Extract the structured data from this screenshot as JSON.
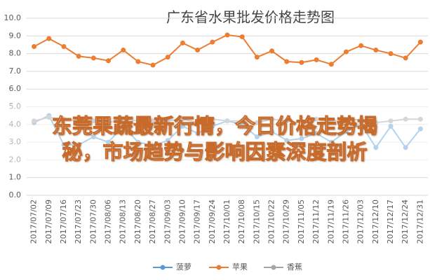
{
  "chart_data": {
    "type": "line",
    "title": "广东省水果批发价格走势图",
    "categories": [
      "2017/07/02",
      "2017/07/09",
      "2017/07/16",
      "2017/07/23",
      "2017/07/30",
      "2017/08/06",
      "2017/08/13",
      "2017/08/20",
      "2017/08/27",
      "2017/09/03",
      "2017/09/10",
      "2017/09/17",
      "2017/09/24",
      "2017/10/01",
      "2017/10/08",
      "2017/10/15",
      "2017/10/22",
      "2017/10/29",
      "2017/11/05",
      "2017/11/12",
      "2017/11/19",
      "2017/11/26",
      "2017/12/03",
      "2017/12/10",
      "2017/12/17",
      "2017/12/24",
      "2017/12/31"
    ],
    "series": [
      {
        "name": "菠萝",
        "color": "#5b9bd5",
        "values": [
          4.1,
          4.5,
          2.85,
          2.85,
          3.3,
          3.0,
          3.9,
          3.0,
          2.8,
          3.1,
          3.9,
          3.5,
          3.9,
          4.2,
          4.0,
          3.3,
          3.6,
          3.1,
          3.2,
          3.5,
          3.0,
          3.6,
          4.0,
          2.7,
          3.9,
          2.7,
          3.75
        ]
      },
      {
        "name": "苹果",
        "color": "#ed7d31",
        "values": [
          8.4,
          8.85,
          8.4,
          7.85,
          7.75,
          7.6,
          8.2,
          7.55,
          7.35,
          7.8,
          8.6,
          8.2,
          8.65,
          9.05,
          8.95,
          7.8,
          8.15,
          7.55,
          7.5,
          7.65,
          7.4,
          8.1,
          8.45,
          8.2,
          8.0,
          7.75,
          8.65
        ]
      },
      {
        "name": "香蕉",
        "color": "#a5a5a5",
        "values": [
          4.2,
          4.4,
          4.3,
          4.2,
          4.2,
          4.1,
          4.3,
          4.2,
          4.2,
          4.2,
          4.3,
          4.1,
          4.3,
          4.2,
          4.2,
          4.1,
          4.3,
          4.2,
          4.1,
          4.3,
          4.2,
          4.2,
          4.3,
          4.1,
          4.2,
          4.3,
          4.3
        ]
      }
    ],
    "ylim": [
      0,
      10
    ],
    "yticks": [
      {
        "value": 0,
        "label": "0.0"
      },
      {
        "value": 1,
        "label": "1.0"
      },
      {
        "value": 2,
        "label": "2.0"
      },
      {
        "value": 3,
        "label": "3.0"
      },
      {
        "value": 4,
        "label": "4.0"
      },
      {
        "value": 5,
        "label": "5.0"
      },
      {
        "value": 6,
        "label": "6.0"
      },
      {
        "value": 7,
        "label": "7.0"
      },
      {
        "value": 8,
        "label": "8.0"
      },
      {
        "value": 9,
        "label": "9.0"
      },
      {
        "value": 10,
        "label": "10.0"
      }
    ],
    "grid": true,
    "legend": "bottom"
  },
  "banner": {
    "text": "东莞果蔬最新行情，今日价格走势揭秘，市场趋势与影响因素深度剖析"
  }
}
